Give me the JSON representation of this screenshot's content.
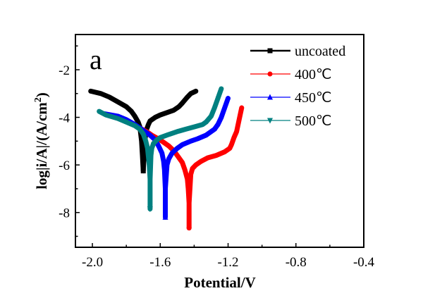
{
  "chart_data": {
    "type": "line",
    "title": "",
    "panel_label": "a",
    "xlabel": "Potential/V",
    "ylabel_parts": {
      "main": "log|i/A|/(A/cm",
      "sup": "2",
      "end": ")"
    },
    "xlim": [
      -2.1,
      -0.4
    ],
    "ylim": [
      -9.46,
      -0.52
    ],
    "xticks": [
      -2.0,
      -1.6,
      -1.2,
      -0.8,
      -0.4
    ],
    "xtick_labels": [
      "-2.0",
      "-1.6",
      "-1.2",
      "-0.8",
      "-0.4"
    ],
    "xminor": [
      -1.8,
      -1.4,
      -1.0,
      -0.6
    ],
    "yticks": [
      -2,
      -4,
      -6,
      -8
    ],
    "ytick_labels": [
      "-2",
      "-4",
      "-6",
      "-8"
    ],
    "yminor": [
      -1,
      -3,
      -5,
      -7,
      -9
    ],
    "grid": false,
    "legend_position": "top-right",
    "series": [
      {
        "name": "uncoated",
        "color": "#000000",
        "marker": "square",
        "x": [
          -2.01,
          -1.95,
          -1.9,
          -1.85,
          -1.8,
          -1.77,
          -1.75,
          -1.73,
          -1.72,
          -1.71,
          -1.705,
          -1.7,
          -1.695,
          -1.69,
          -1.685,
          -1.67,
          -1.66,
          -1.63,
          -1.6,
          -1.56,
          -1.52,
          -1.49,
          -1.47,
          -1.44,
          -1.42,
          -1.39
        ],
        "y": [
          -2.9,
          -3.0,
          -3.15,
          -3.35,
          -3.55,
          -3.75,
          -3.95,
          -4.2,
          -4.4,
          -5.0,
          -5.6,
          -6.25,
          -5.6,
          -5.0,
          -4.6,
          -4.3,
          -4.15,
          -4.0,
          -3.9,
          -3.8,
          -3.7,
          -3.55,
          -3.4,
          -3.15,
          -3.0,
          -2.9
        ],
        "min_point": [
          -1.7,
          -6.25
        ]
      },
      {
        "name": "400℃",
        "color": "#ff0000",
        "marker": "circle",
        "x": [
          -1.72,
          -1.68,
          -1.65,
          -1.6,
          -1.55,
          -1.52,
          -1.5,
          -1.47,
          -1.455,
          -1.44,
          -1.435,
          -1.43,
          -1.43,
          -1.43,
          -1.425,
          -1.42,
          -1.41,
          -1.39,
          -1.36,
          -1.32,
          -1.27,
          -1.22,
          -1.19,
          -1.18,
          -1.165,
          -1.15,
          -1.135,
          -1.12
        ],
        "y": [
          -4.45,
          -4.6,
          -4.75,
          -4.95,
          -5.2,
          -5.4,
          -5.6,
          -5.9,
          -6.2,
          -6.6,
          -7.0,
          -7.6,
          -8.65,
          -7.6,
          -7.0,
          -6.4,
          -6.15,
          -6.0,
          -5.85,
          -5.7,
          -5.6,
          -5.45,
          -5.3,
          -5.15,
          -4.85,
          -4.6,
          -4.1,
          -3.6
        ],
        "min_point": [
          -1.43,
          -8.65
        ]
      },
      {
        "name": "450℃",
        "color": "#0000ff",
        "marker": "triangle-up",
        "x": [
          -1.93,
          -1.85,
          -1.8,
          -1.75,
          -1.7,
          -1.66,
          -1.63,
          -1.61,
          -1.59,
          -1.58,
          -1.575,
          -1.57,
          -1.57,
          -1.57,
          -1.565,
          -1.56,
          -1.55,
          -1.53,
          -1.5,
          -1.47,
          -1.42,
          -1.38,
          -1.33,
          -1.28,
          -1.26,
          -1.24,
          -1.22,
          -1.2
        ],
        "y": [
          -3.85,
          -3.95,
          -4.1,
          -4.3,
          -4.55,
          -4.75,
          -4.95,
          -5.2,
          -5.5,
          -5.85,
          -6.2,
          -7.0,
          -8.2,
          -7.0,
          -6.5,
          -6.0,
          -5.75,
          -5.5,
          -5.3,
          -5.15,
          -5.0,
          -4.9,
          -4.75,
          -4.5,
          -4.3,
          -4.0,
          -3.6,
          -3.2
        ],
        "min_point": [
          -1.57,
          -8.2
        ]
      },
      {
        "name": "500℃",
        "color": "#008080",
        "marker": "triangle-down",
        "x": [
          -1.96,
          -1.92,
          -1.85,
          -1.8,
          -1.75,
          -1.72,
          -1.7,
          -1.685,
          -1.675,
          -1.665,
          -1.66,
          -1.66,
          -1.66,
          -1.655,
          -1.65,
          -1.64,
          -1.62,
          -1.6,
          -1.55,
          -1.5,
          -1.45,
          -1.4,
          -1.35,
          -1.33,
          -1.3,
          -1.28,
          -1.26,
          -1.24
        ],
        "y": [
          -3.75,
          -3.9,
          -4.05,
          -4.2,
          -4.35,
          -4.5,
          -4.7,
          -5.0,
          -5.3,
          -6.0,
          -6.6,
          -7.85,
          -6.6,
          -5.6,
          -5.3,
          -5.1,
          -4.95,
          -4.85,
          -4.72,
          -4.6,
          -4.5,
          -4.4,
          -4.3,
          -4.2,
          -3.95,
          -3.6,
          -3.2,
          -2.8
        ],
        "min_point": [
          -1.66,
          -7.85
        ]
      }
    ]
  }
}
